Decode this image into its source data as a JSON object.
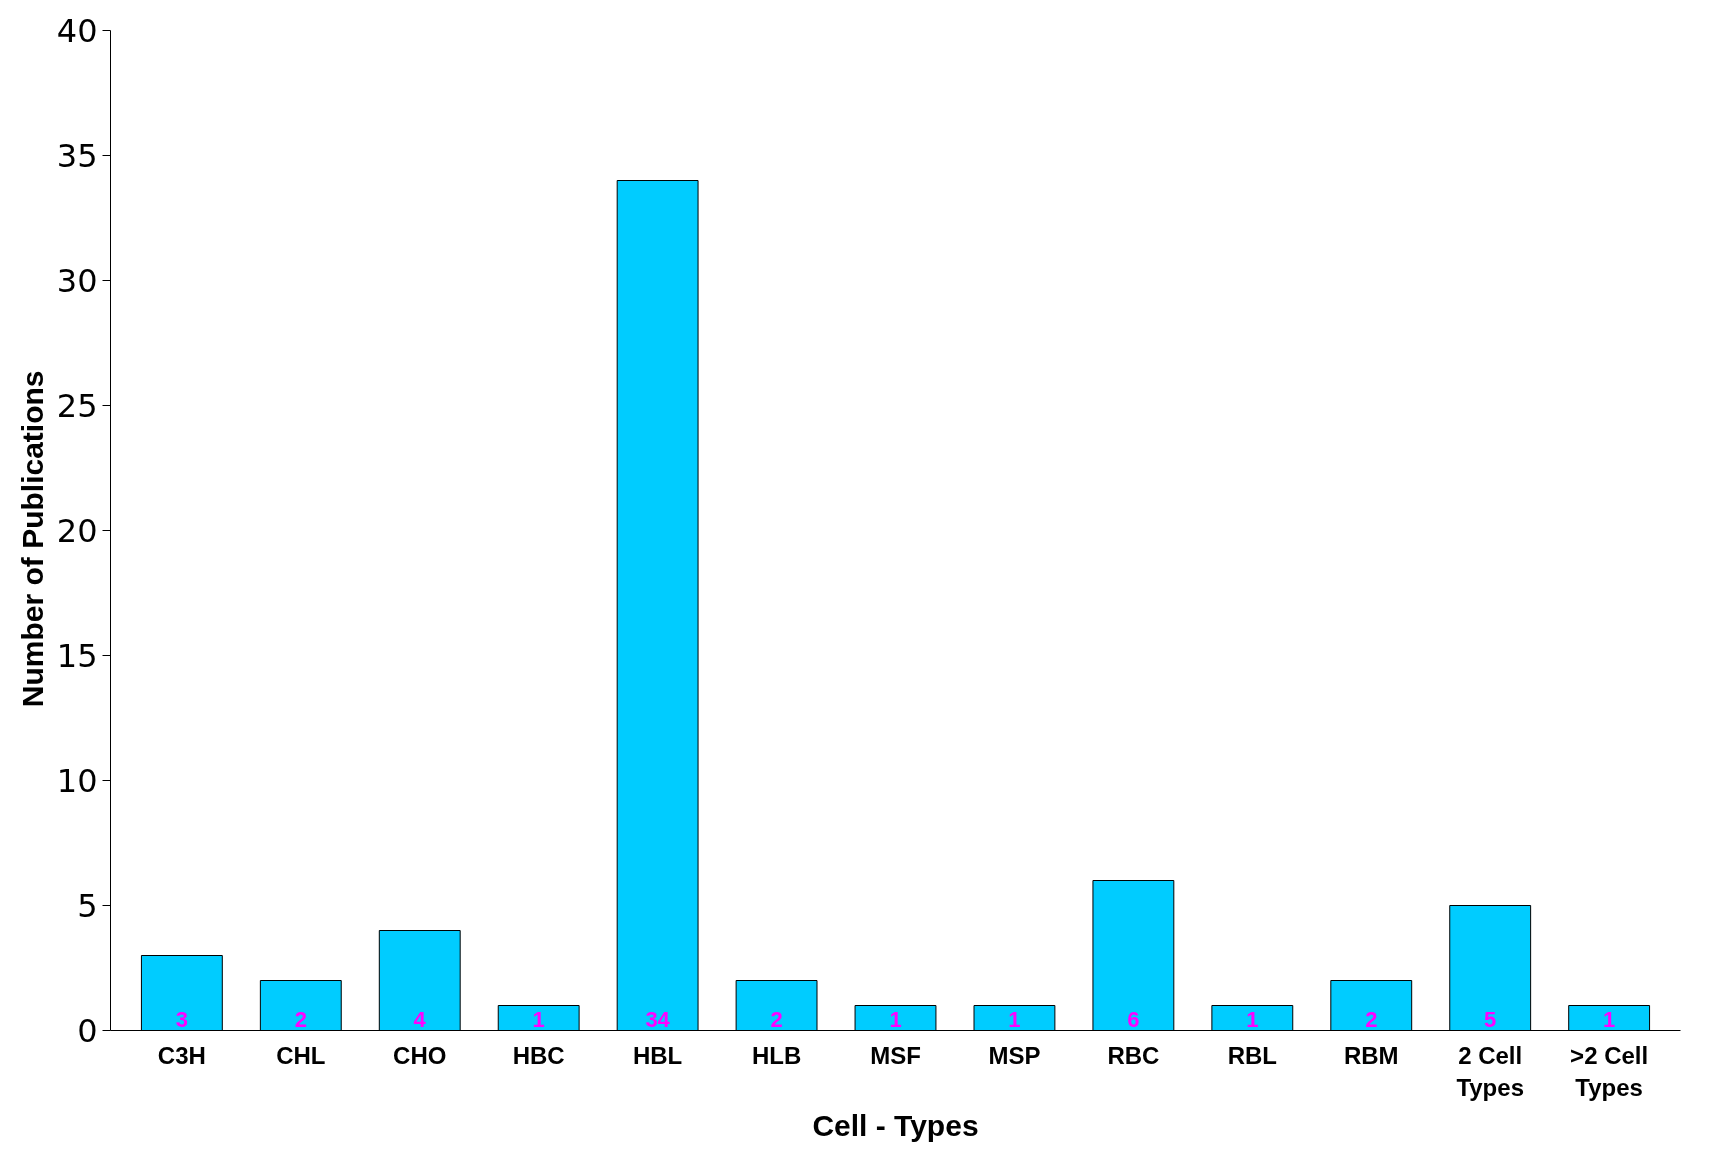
{
  "chart_data": {
    "type": "bar",
    "xlabel": "Cell - Types",
    "ylabel": "Number  of  Publications",
    "categories": [
      "C3H",
      "CHL",
      "CHO",
      "HBC",
      "HBL",
      "HLB",
      "MSF",
      "MSP",
      "RBC",
      "RBL",
      "RBM",
      "2 Cell Types",
      ">2 Cell Types"
    ],
    "values": [
      3,
      2,
      4,
      1,
      34,
      2,
      1,
      1,
      6,
      1,
      2,
      5,
      1
    ],
    "color": "#00ccff",
    "ylim": [
      0,
      40
    ],
    "yticks": [
      0,
      5,
      10,
      15,
      20,
      25,
      30,
      35,
      40
    ],
    "data_labels": true,
    "grid": false
  }
}
